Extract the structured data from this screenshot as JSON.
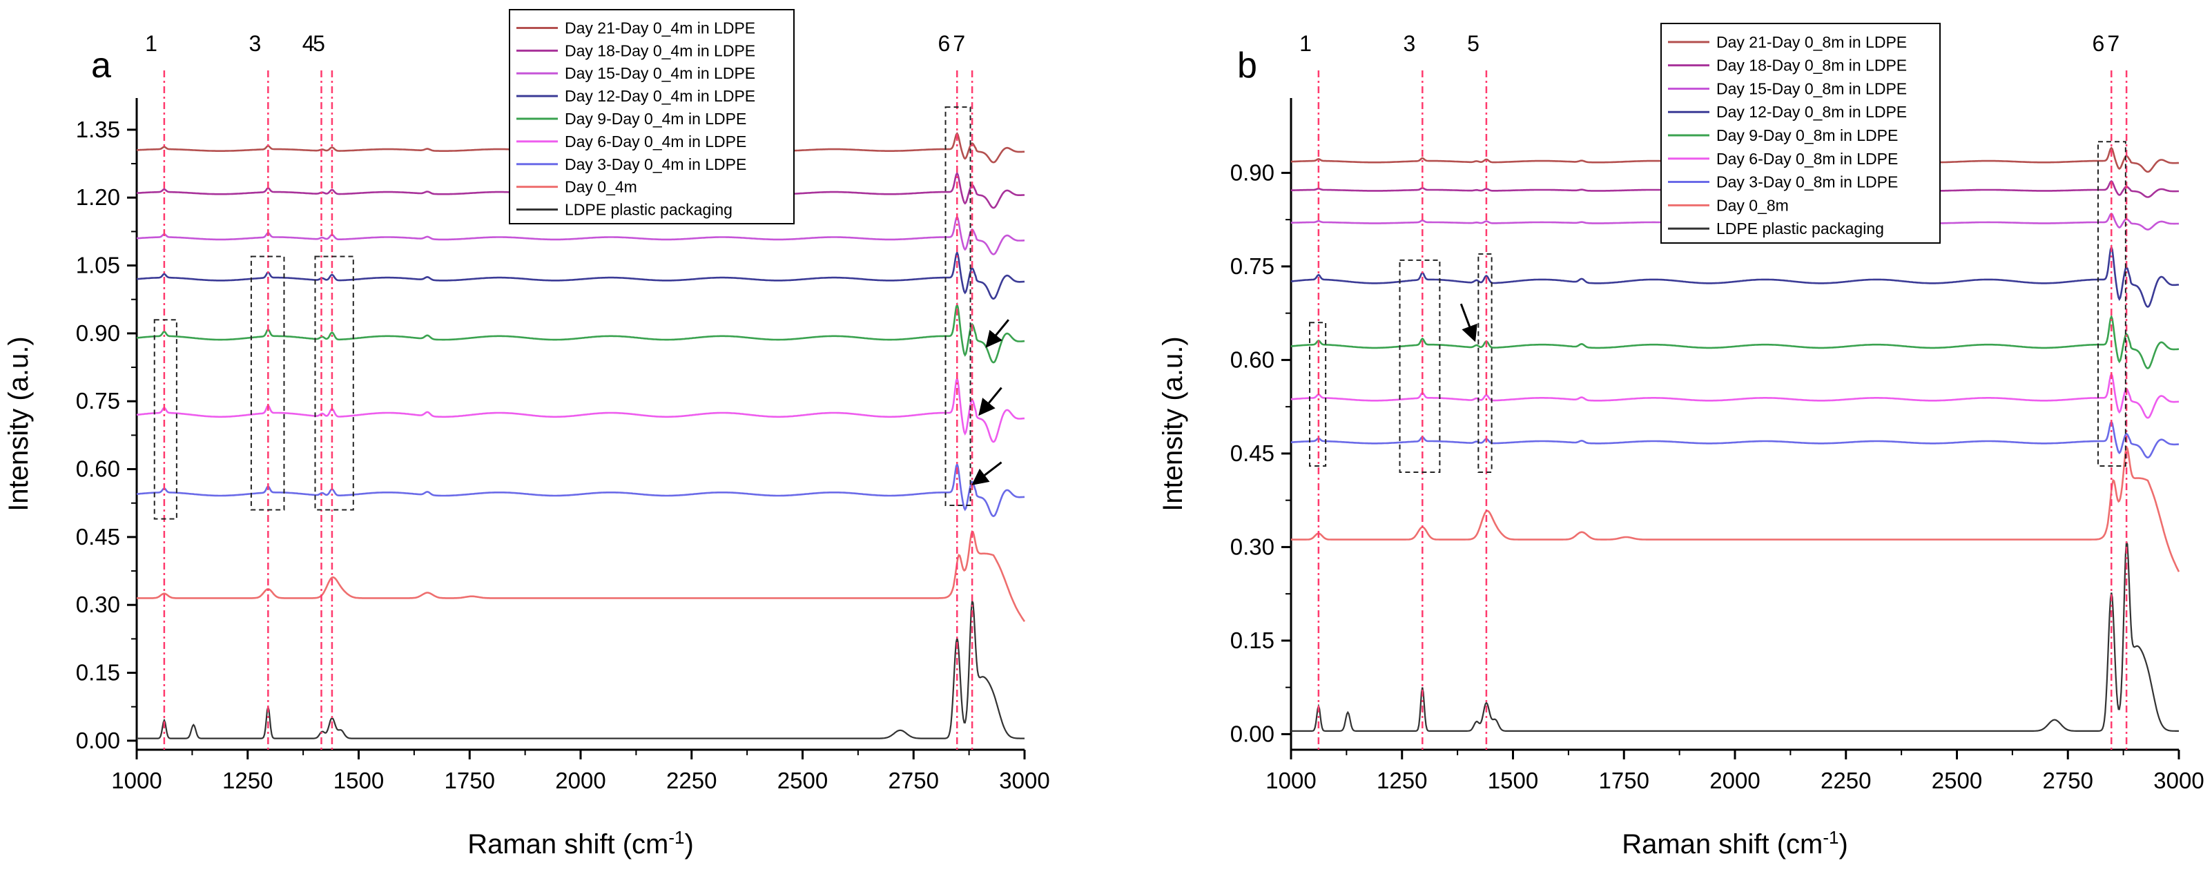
{
  "figure": {
    "colors": {
      "day21": "#b4504f",
      "day18": "#a8329a",
      "day15": "#c655d8",
      "day12": "#3b3b96",
      "day9": "#3aa24f",
      "day6": "#ee5cee",
      "day3": "#6a6ae8",
      "day0": "#ee6e6e",
      "ldpe": "#333333",
      "marker": "#ff3b6e"
    }
  },
  "chart_data": [
    {
      "panel_label": "a",
      "type": "line",
      "xlabel_main": "Raman shift (cm",
      "xlabel_sup": "-1",
      "xlabel_end": ")",
      "ylabel": "Intensity (a.u.)",
      "xlim": [
        1000,
        3000
      ],
      "ylim": [
        -0.02,
        1.42
      ],
      "x_ticks": [
        1000,
        1250,
        1500,
        1750,
        2000,
        2250,
        2500,
        2750,
        3000
      ],
      "x_tick_labels": [
        "1000",
        "1250",
        "1500",
        "1750",
        "2000",
        "2250",
        "2500",
        "2750",
        "3000"
      ],
      "y_ticks": [
        0.0,
        0.15,
        0.3,
        0.45,
        0.6,
        0.75,
        0.9,
        1.05,
        1.2,
        1.35
      ],
      "y_tick_labels": [
        "0.00",
        "0.15",
        "0.30",
        "0.45",
        "0.60",
        "0.75",
        "0.90",
        "1.05",
        "1.20",
        "1.35"
      ],
      "peak_lines": [
        {
          "label": "1",
          "x": 1062
        },
        {
          "label": "3",
          "x": 1296
        },
        {
          "label": "4",
          "x": 1416
        },
        {
          "label": "5",
          "x": 1440
        },
        {
          "label": "6",
          "x": 2848
        },
        {
          "label": "7",
          "x": 2882
        }
      ],
      "legend": [
        {
          "label": "Day 21-Day 0_4m in LDPE",
          "color_key": "day21"
        },
        {
          "label": "Day 18-Day 0_4m in LDPE",
          "color_key": "day18"
        },
        {
          "label": "Day 15-Day 0_4m in LDPE",
          "color_key": "day15"
        },
        {
          "label": "Day 12-Day 0_4m in LDPE",
          "color_key": "day12"
        },
        {
          "label": "Day 9-Day 0_4m in LDPE",
          "color_key": "day9"
        },
        {
          "label": "Day 6-Day 0_4m in LDPE",
          "color_key": "day6"
        },
        {
          "label": "Day 3-Day 0_4m in LDPE",
          "color_key": "day3"
        },
        {
          "label": "Day 0_4m",
          "color_key": "day0"
        },
        {
          "label": "LDPE plastic packaging",
          "color_key": "ldpe"
        }
      ],
      "series": [
        {
          "name": "Day 21-Day 0_4m in LDPE",
          "color_key": "day21",
          "kind": "diff",
          "baseline": 1.305,
          "peak_scale": 0.5
        },
        {
          "name": "Day 18-Day 0_4m in LDPE",
          "color_key": "day18",
          "kind": "diff",
          "baseline": 1.21,
          "peak_scale": 0.6
        },
        {
          "name": "Day 15-Day 0_4m in LDPE",
          "color_key": "day15",
          "kind": "diff",
          "baseline": 1.11,
          "peak_scale": 0.65
        },
        {
          "name": "Day 12-Day 0_4m in LDPE",
          "color_key": "day12",
          "kind": "diff",
          "baseline": 1.02,
          "peak_scale": 0.8
        },
        {
          "name": "Day 9-Day 0_4m in LDPE",
          "color_key": "day9",
          "kind": "diff",
          "baseline": 0.89,
          "peak_scale": 1.0
        },
        {
          "name": "Day 6-Day 0_4m in LDPE",
          "color_key": "day6",
          "kind": "diff",
          "baseline": 0.72,
          "peak_scale": 1.1
        },
        {
          "name": "Day 3-Day 0_4m in LDPE",
          "color_key": "day3",
          "kind": "diff",
          "baseline": 0.545,
          "peak_scale": 0.9
        },
        {
          "name": "Day 0_4m",
          "color_key": "day0",
          "kind": "day0",
          "baseline": 0.315,
          "peak_scale": 1.0
        },
        {
          "name": "LDPE plastic packaging",
          "color_key": "ldpe",
          "kind": "ldpe",
          "baseline": 0.005,
          "peak_scale": 1.0
        }
      ],
      "dashed_boxes": [
        {
          "x0": 1040,
          "x1": 1090,
          "y0": 0.49,
          "y1": 0.93
        },
        {
          "x0": 1258,
          "x1": 1332,
          "y0": 0.51,
          "y1": 1.07
        },
        {
          "x0": 1402,
          "x1": 1488,
          "y0": 0.51,
          "y1": 1.07
        },
        {
          "x0": 2822,
          "x1": 2878,
          "y0": 0.52,
          "y1": 1.4
        }
      ],
      "arrows": [
        {
          "x_from": 2948,
          "y_from": 0.615,
          "x_to": 2888,
          "y_to": 0.57
        },
        {
          "x_from": 2948,
          "y_from": 0.78,
          "x_to": 2902,
          "y_to": 0.725
        },
        {
          "x_from": 2964,
          "y_from": 0.93,
          "x_to": 2918,
          "y_to": 0.875
        }
      ]
    },
    {
      "panel_label": "b",
      "type": "line",
      "xlabel_main": "Raman shift (cm",
      "xlabel_sup": "-1",
      "xlabel_end": ")",
      "ylabel": "Intensity (a.u.)",
      "xlim": [
        1000,
        3000
      ],
      "ylim": [
        -0.025,
        1.02
      ],
      "x_ticks": [
        1000,
        1250,
        1500,
        1750,
        2000,
        2250,
        2500,
        2750,
        3000
      ],
      "x_tick_labels": [
        "1000",
        "1250",
        "1500",
        "1750",
        "2000",
        "2250",
        "2500",
        "2750",
        "3000"
      ],
      "y_ticks": [
        0.0,
        0.15,
        0.3,
        0.45,
        0.6,
        0.75,
        0.9
      ],
      "y_tick_labels": [
        "0.00",
        "0.15",
        "0.30",
        "0.45",
        "0.60",
        "0.75",
        "0.90"
      ],
      "peak_lines": [
        {
          "label": "1",
          "x": 1062
        },
        {
          "label": "3",
          "x": 1296
        },
        {
          "label": "5",
          "x": 1440
        },
        {
          "label": "6",
          "x": 2848
        },
        {
          "label": "7",
          "x": 2882
        }
      ],
      "legend": [
        {
          "label": "Day 21-Day 0_8m in LDPE",
          "color_key": "day21"
        },
        {
          "label": "Day 18-Day 0_8m in LDPE",
          "color_key": "day18"
        },
        {
          "label": "Day 15-Day 0_8m in LDPE",
          "color_key": "day15"
        },
        {
          "label": "Day 12-Day 0_8m in LDPE",
          "color_key": "day12"
        },
        {
          "label": "Day 9-Day 0_8m in LDPE",
          "color_key": "day9"
        },
        {
          "label": "Day 6-Day 0_8m in LDPE",
          "color_key": "day6"
        },
        {
          "label": "Day 3-Day 0_8m in LDPE",
          "color_key": "day3"
        },
        {
          "label": "Day 0_8m",
          "color_key": "day0"
        },
        {
          "label": "LDPE plastic packaging",
          "color_key": "ldpe"
        }
      ],
      "series": [
        {
          "name": "Day 21-Day 0_8m in LDPE",
          "color_key": "day21",
          "kind": "diff",
          "baseline": 0.918,
          "peak_scale": 0.3
        },
        {
          "name": "Day 18-Day 0_8m in LDPE",
          "color_key": "day18",
          "kind": "diff",
          "baseline": 0.872,
          "peak_scale": 0.2
        },
        {
          "name": "Day 15-Day 0_8m in LDPE",
          "color_key": "day15",
          "kind": "diff",
          "baseline": 0.82,
          "peak_scale": 0.2
        },
        {
          "name": "Day 12-Day 0_8m in LDPE",
          "color_key": "day12",
          "kind": "diff",
          "baseline": 0.726,
          "peak_scale": 0.75
        },
        {
          "name": "Day 9-Day 0_8m in LDPE",
          "color_key": "day9",
          "kind": "diff",
          "baseline": 0.622,
          "peak_scale": 0.65
        },
        {
          "name": "Day 6-Day 0_8m in LDPE",
          "color_key": "day6",
          "kind": "diff",
          "baseline": 0.537,
          "peak_scale": 0.55
        },
        {
          "name": "Day 3-Day 0_8m in LDPE",
          "color_key": "day3",
          "kind": "diff",
          "baseline": 0.468,
          "peak_scale": 0.45
        },
        {
          "name": "Day 0_8m",
          "color_key": "day0",
          "kind": "day0",
          "baseline": 0.312,
          "peak_scale": 1.0
        },
        {
          "name": "LDPE plastic packaging",
          "color_key": "ldpe",
          "kind": "ldpe",
          "baseline": 0.005,
          "peak_scale": 1.0
        }
      ],
      "dashed_boxes": [
        {
          "x0": 1042,
          "x1": 1078,
          "y0": 0.43,
          "y1": 0.66
        },
        {
          "x0": 1245,
          "x1": 1335,
          "y0": 0.42,
          "y1": 0.76
        },
        {
          "x0": 1422,
          "x1": 1452,
          "y0": 0.42,
          "y1": 0.77
        },
        {
          "x0": 2818,
          "x1": 2880,
          "y0": 0.43,
          "y1": 0.95
        }
      ],
      "arrows": [
        {
          "x_from": 1383,
          "y_from": 0.69,
          "x_to": 1412,
          "y_to": 0.635
        }
      ]
    }
  ]
}
